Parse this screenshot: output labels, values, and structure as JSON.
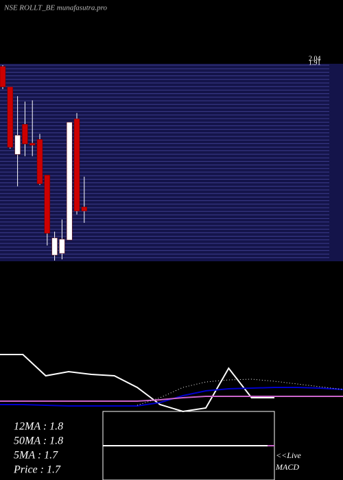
{
  "header": {
    "title": "NSE ROLLT_BE munafasutra.pro"
  },
  "chart_data": [
    {
      "type": "candlestick",
      "ylim": [
        1.574,
        2.04
      ],
      "yticks": [
        2.04,
        1.91
      ],
      "up_color": "#ffffff",
      "down_color": "#cc0000",
      "open": [
        2.037,
        1.988,
        1.827,
        1.899,
        1.854,
        1.863,
        1.778,
        1.587,
        1.591,
        1.623,
        1.912,
        1.702
      ],
      "high": [
        2.04,
        1.988,
        1.966,
        1.953,
        1.956,
        1.876,
        1.778,
        1.643,
        1.672,
        1.904,
        1.926,
        1.774
      ],
      "low": [
        1.983,
        1.841,
        1.751,
        1.823,
        1.823,
        1.754,
        1.61,
        1.574,
        1.577,
        1.623,
        1.684,
        1.664
      ],
      "close": [
        1.988,
        1.844,
        1.873,
        1.852,
        1.849,
        1.757,
        1.639,
        1.628,
        1.625,
        1.904,
        1.692,
        1.692
      ]
    },
    {
      "type": "line",
      "ylim": [
        0,
        100
      ],
      "categories": [
        null,
        null,
        null,
        null,
        null,
        null,
        null,
        null,
        null,
        null,
        null,
        null,
        null,
        null,
        null,
        null
      ],
      "series": [
        {
          "color": "#ffffff",
          "style": "solid",
          "values": [
            88,
            88,
            57,
            63,
            59,
            57,
            40,
            15,
            5,
            10,
            68,
            25,
            25,
            null,
            null,
            null
          ]
        },
        {
          "color": "#0000cc",
          "style": "solid",
          "values": [
            15,
            15,
            14,
            13,
            13,
            13,
            13,
            18,
            28,
            35,
            38,
            39,
            40,
            40,
            39,
            37
          ]
        },
        {
          "color": "#cc66cc",
          "style": "solid",
          "values": [
            20,
            20,
            20,
            20,
            20,
            20,
            20,
            22,
            25,
            27,
            27,
            27,
            27,
            27,
            27,
            27
          ]
        },
        {
          "color": "#ffffff",
          "style": "dotted",
          "values": [
            null,
            null,
            null,
            null,
            null,
            null,
            14,
            25,
            40,
            48,
            51,
            52,
            49,
            45,
            41,
            37
          ]
        }
      ]
    }
  ],
  "stats": [
    "12MA : 1.8",
    "50MA : 1.8",
    "5MA : 1.7",
    "Price   : 1.7"
  ],
  "live_label": [
    "<<Live",
    "MACD"
  ]
}
